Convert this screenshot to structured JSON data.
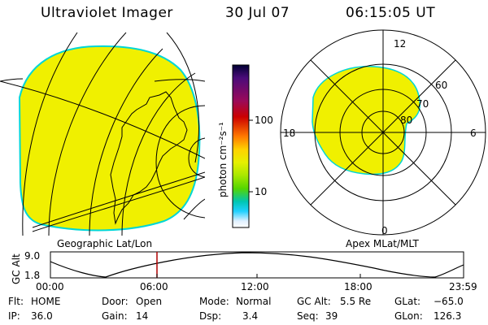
{
  "header": {
    "instrument": "Ultraviolet Imager",
    "date": "30 Jul 07",
    "time": "06:15:05 UT"
  },
  "colors": {
    "aurora_fill": "#f0f000",
    "disk_edge": "#00d6d6",
    "line": "#000000",
    "time_marker": "#b00000"
  },
  "colorbar": {
    "unit_label": "photon cm⁻²s⁻¹",
    "ticks": [
      "100",
      "10"
    ],
    "stops": [
      "#000033",
      "#4b0b7a",
      "#9a0a5a",
      "#cc0000",
      "#ff7a00",
      "#ffd200",
      "#e6f000",
      "#a8e800",
      "#55d600",
      "#00c6b2",
      "#20d0ff",
      "#e0f0ff",
      "#ffffff"
    ]
  },
  "geographic_panel": {
    "label": "Geographic Lat/Lon"
  },
  "polar_plot": {
    "label": "Apex MLat/MLT",
    "mlt_labels": {
      "top": "12",
      "left": "18",
      "right": "6",
      "bottom": "0"
    },
    "mlat_labels": [
      "60",
      "70",
      "80"
    ]
  },
  "altitude_plot": {
    "axis_title": "GC Alt",
    "y_ticks": [
      "9.0",
      "1.8"
    ],
    "x_ticks": [
      "00:00",
      "06:00",
      "12:00",
      "18:00",
      "23:59"
    ],
    "current_time_marker": "06:15"
  },
  "status": {
    "flt_label": "Flt:",
    "flt_value": "HOME",
    "ip_label": "IP:",
    "ip_value": "36.0",
    "door_label": "Door:",
    "door_value": "Open",
    "gain_label": "Gain:",
    "gain_value": "14",
    "mode_label": "Mode:",
    "mode_value": "Normal",
    "dsp_label": "Dsp:",
    "dsp_value": "3.4",
    "gcalt_label": "GC Alt:",
    "gcalt_value": "5.5 Re",
    "seq_label": "Seq:",
    "seq_value": "39",
    "glat_label": "GLat:",
    "glat_value": "−65.0",
    "glon_label": "GLon:",
    "glon_value": "126.3"
  }
}
